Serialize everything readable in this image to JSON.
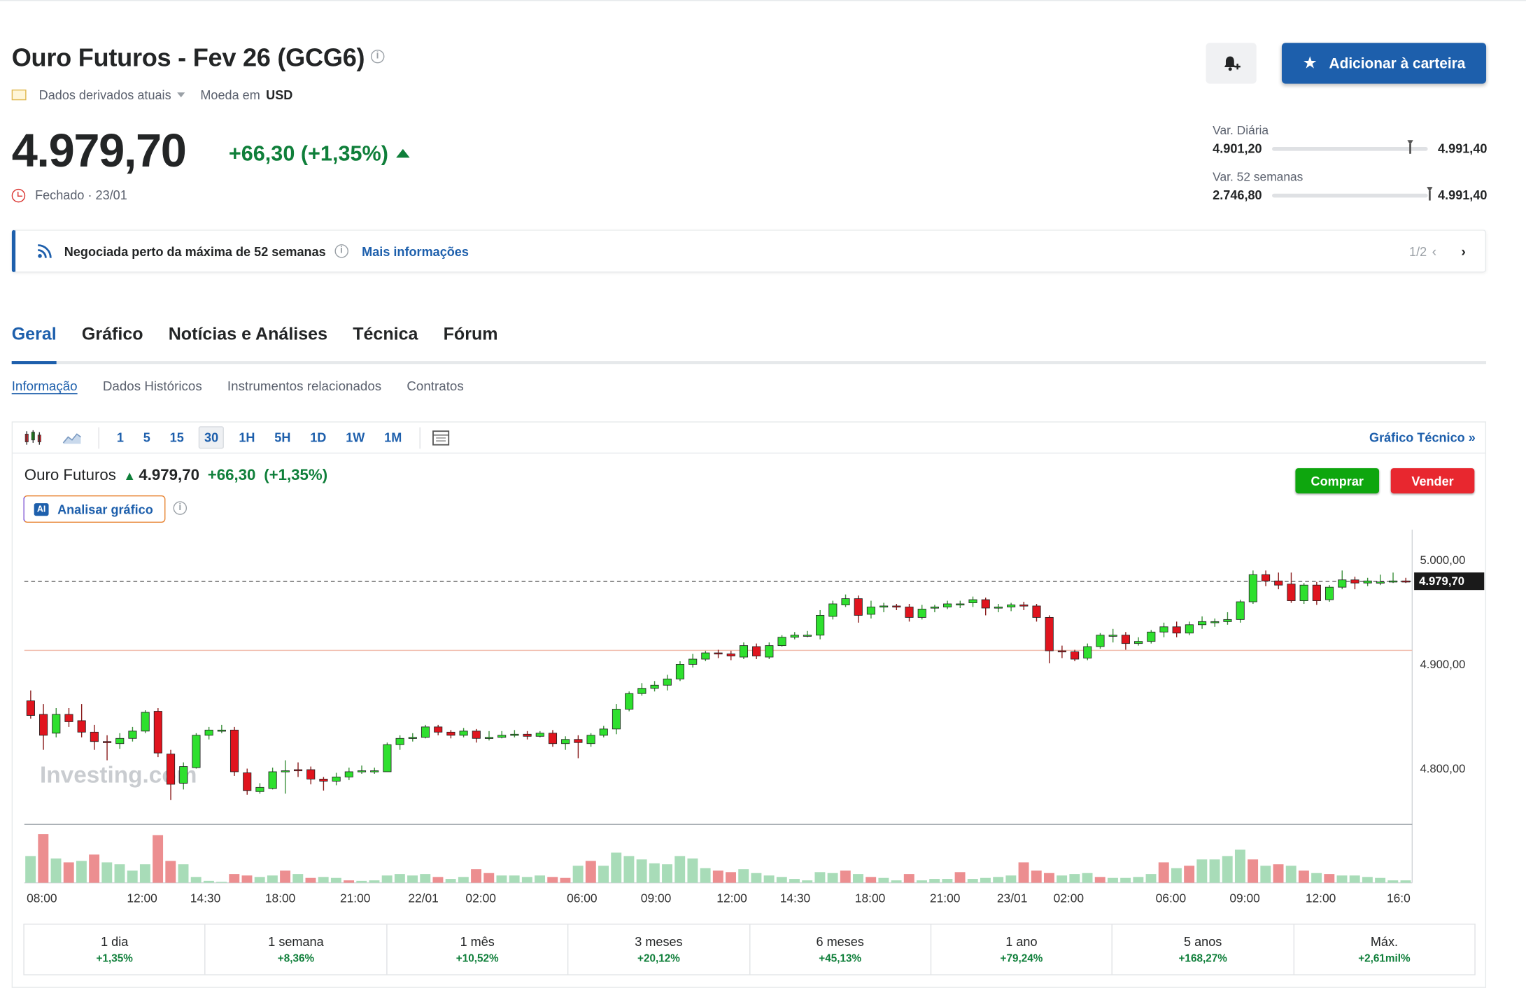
{
  "header": {
    "title": "Ouro Futuros - Fev 26 (GCG6)",
    "data_label": "Dados derivados atuais",
    "currency_label": "Moeda em",
    "currency": "USD",
    "add_portfolio_label": "Adicionar à carteira"
  },
  "quote": {
    "price": "4.979,70",
    "change": "+66,30",
    "change_pct": "(+1,35%)",
    "status": "Fechado · 23/01",
    "accent": "#1d5fac",
    "up_color": "#0f7f3a",
    "down_color": "#d9302c"
  },
  "ranges": {
    "daily_label": "Var. Diária",
    "daily_low": "4.901,20",
    "daily_high": "4.991,40",
    "daily_position": 0.87,
    "week52_label": "Var. 52 semanas",
    "week52_low": "2.746,80",
    "week52_high": "4.991,40",
    "week52_position": 0.99
  },
  "banner": {
    "text": "Negociada perto da máxima de 52 semanas",
    "link": "Mais informações",
    "pager": "1/2"
  },
  "tabs": [
    "Geral",
    "Gráfico",
    "Notícias e Análises",
    "Técnica",
    "Fórum"
  ],
  "subtabs": [
    "Informação",
    "Dados Históricos",
    "Instrumentos relacionados",
    "Contratos"
  ],
  "chart_toolbar": {
    "timeframes": [
      "1",
      "5",
      "15",
      "30",
      "1H",
      "5H",
      "1D",
      "1W",
      "1M"
    ],
    "selected": "30",
    "technical_link": "Gráfico Técnico »"
  },
  "chart_legend": {
    "name": "Ouro Futuros",
    "price": "4.979,70",
    "change": "+66,30",
    "change_pct": "(+1,35%)",
    "buy": "Comprar",
    "sell": "Vender",
    "ai_label": "Analisar gráfico",
    "ai_badge": "AI",
    "watermark": "Investing.com"
  },
  "chart_data": {
    "type": "candlestick",
    "ylabels": [
      "5.000,00",
      "4.900,00",
      "4.800,00"
    ],
    "last_price_label": "4.979,70",
    "last_price": 4979.7,
    "reference_line": 4913.4,
    "xlabels": [
      "08:00",
      "12:00",
      "14:30",
      "18:00",
      "21:00",
      "22/01",
      "02:00",
      "06:00",
      "09:00",
      "12:00",
      "14:30",
      "18:00",
      "21:00",
      "23/01",
      "02:00",
      "06:00",
      "09:00",
      "12:00",
      "16:0"
    ],
    "candles": [
      [
        4865,
        4851,
        4875,
        4848
      ],
      [
        4852,
        4832,
        4862,
        4818
      ],
      [
        4834,
        4852,
        4858,
        4830
      ],
      [
        4852,
        4845,
        4858,
        4840
      ],
      [
        4846,
        4835,
        4862,
        4830
      ],
      [
        4835,
        4826,
        4842,
        4818
      ],
      [
        4826,
        4825,
        4832,
        4808
      ],
      [
        4824,
        4829,
        4834,
        4819
      ],
      [
        4829,
        4836,
        4840,
        4826
      ],
      [
        4836,
        4854,
        4856,
        4834
      ],
      [
        4855,
        4815,
        4858,
        4811
      ],
      [
        4814,
        4785,
        4818,
        4770
      ],
      [
        4786,
        4802,
        4806,
        4780
      ],
      [
        4801,
        4832,
        4834,
        4800
      ],
      [
        4832,
        4837,
        4840,
        4828
      ],
      [
        4836,
        4837,
        4842,
        4834
      ],
      [
        4837,
        4797,
        4840,
        4793
      ],
      [
        4796,
        4779,
        4800,
        4775
      ],
      [
        4778,
        4782,
        4786,
        4776
      ],
      [
        4781,
        4797,
        4801,
        4780
      ],
      [
        4798,
        4798,
        4808,
        4776
      ],
      [
        4799,
        4798,
        4806,
        4792
      ],
      [
        4799,
        4790,
        4802,
        4785
      ],
      [
        4790,
        4788,
        4792,
        4779
      ],
      [
        4788,
        4792,
        4796,
        4784
      ],
      [
        4792,
        4797,
        4801,
        4789
      ],
      [
        4797,
        4798,
        4803,
        4795
      ],
      [
        4797,
        4798,
        4801,
        4795
      ],
      [
        4797,
        4823,
        4825,
        4797
      ],
      [
        4823,
        4829,
        4832,
        4818
      ],
      [
        4829,
        4830,
        4834,
        4826
      ],
      [
        4830,
        4840,
        4842,
        4829
      ],
      [
        4840,
        4835,
        4842,
        4832
      ],
      [
        4835,
        4832,
        4837,
        4829
      ],
      [
        4832,
        4836,
        4839,
        4830
      ],
      [
        4836,
        4829,
        4838,
        4825
      ],
      [
        4829,
        4830,
        4836,
        4827
      ],
      [
        4830,
        4832,
        4836,
        4829
      ],
      [
        4832,
        4833,
        4837,
        4830
      ],
      [
        4833,
        4831,
        4836,
        4828
      ],
      [
        4831,
        4834,
        4836,
        4830
      ],
      [
        4834,
        4824,
        4837,
        4821
      ],
      [
        4824,
        4828,
        4831,
        4818
      ],
      [
        4828,
        4825,
        4832,
        4810
      ],
      [
        4824,
        4832,
        4834,
        4821
      ],
      [
        4832,
        4838,
        4841,
        4830
      ],
      [
        4838,
        4857,
        4862,
        4833
      ],
      [
        4857,
        4872,
        4874,
        4855
      ],
      [
        4872,
        4877,
        4882,
        4870
      ],
      [
        4877,
        4880,
        4884,
        4874
      ],
      [
        4880,
        4886,
        4890,
        4875
      ],
      [
        4886,
        4900,
        4903,
        4884
      ],
      [
        4900,
        4905,
        4910,
        4897
      ],
      [
        4905,
        4911,
        4913,
        4903
      ],
      [
        4911,
        4910,
        4914,
        4906
      ],
      [
        4910,
        4908,
        4913,
        4904
      ],
      [
        4907,
        4918,
        4921,
        4905
      ],
      [
        4917,
        4908,
        4920,
        4905
      ],
      [
        4907,
        4918,
        4921,
        4905
      ],
      [
        4918,
        4926,
        4928,
        4917
      ],
      [
        4926,
        4928,
        4931,
        4924
      ],
      [
        4927,
        4928,
        4932,
        4926
      ],
      [
        4928,
        4947,
        4952,
        4924
      ],
      [
        4946,
        4958,
        4961,
        4943
      ],
      [
        4957,
        4963,
        4967,
        4955
      ],
      [
        4963,
        4947,
        4966,
        4940
      ],
      [
        4948,
        4955,
        4961,
        4944
      ],
      [
        4955,
        4956,
        4959,
        4950
      ],
      [
        4956,
        4955,
        4958,
        4952
      ],
      [
        4955,
        4945,
        4958,
        4941
      ],
      [
        4945,
        4953,
        4957,
        4943
      ],
      [
        4954,
        4955,
        4957,
        4950
      ],
      [
        4955,
        4958,
        4961,
        4953
      ],
      [
        4958,
        4958,
        4961,
        4954
      ],
      [
        4959,
        4962,
        4965,
        4955
      ],
      [
        4962,
        4954,
        4964,
        4947
      ],
      [
        4954,
        4955,
        4958,
        4950
      ],
      [
        4955,
        4957,
        4959,
        4951
      ],
      [
        4957,
        4956,
        4960,
        4952
      ],
      [
        4956,
        4945,
        4958,
        4941
      ],
      [
        4945,
        4913,
        4947,
        4901
      ],
      [
        4913,
        4912,
        4918,
        4906
      ],
      [
        4912,
        4905,
        4914,
        4903
      ],
      [
        4906,
        4917,
        4920,
        4904
      ],
      [
        4917,
        4928,
        4930,
        4915
      ],
      [
        4928,
        4928,
        4934,
        4921
      ],
      [
        4928,
        4920,
        4931,
        4914
      ],
      [
        4920,
        4922,
        4926,
        4918
      ],
      [
        4922,
        4931,
        4933,
        4920
      ],
      [
        4931,
        4936,
        4940,
        4926
      ],
      [
        4936,
        4930,
        4941,
        4926
      ],
      [
        4930,
        4938,
        4941,
        4928
      ],
      [
        4938,
        4941,
        4946,
        4934
      ],
      [
        4941,
        4941,
        4944,
        4936
      ],
      [
        4941,
        4943,
        4950,
        4938
      ],
      [
        4943,
        4960,
        4962,
        4940
      ],
      [
        4960,
        4986,
        4990,
        4958
      ],
      [
        4986,
        4980,
        4990,
        4975
      ],
      [
        4980,
        4976,
        4988,
        4972
      ],
      [
        4977,
        4961,
        4988,
        4959
      ],
      [
        4961,
        4976,
        4978,
        4958
      ],
      [
        4976,
        4961,
        4979,
        4957
      ],
      [
        4962,
        4974,
        4976,
        4960
      ],
      [
        4974,
        4981,
        4990,
        4972
      ],
      [
        4981,
        4978,
        4984,
        4972
      ],
      [
        4978,
        4980,
        4983,
        4975
      ],
      [
        4979,
        4979,
        4986,
        4976
      ],
      [
        4980,
        4980,
        4988,
        4978
      ],
      [
        4980,
        4979.7,
        4983,
        4978
      ]
    ],
    "volumes": [
      [
        0.55,
        "up"
      ],
      [
        1.0,
        "down"
      ],
      [
        0.5,
        "up"
      ],
      [
        0.42,
        "down"
      ],
      [
        0.45,
        "up"
      ],
      [
        0.58,
        "down"
      ],
      [
        0.42,
        "up"
      ],
      [
        0.38,
        "up"
      ],
      [
        0.25,
        "up"
      ],
      [
        0.38,
        "up"
      ],
      [
        0.98,
        "down"
      ],
      [
        0.45,
        "down"
      ],
      [
        0.38,
        "up"
      ],
      [
        0.12,
        "up"
      ],
      [
        0.04,
        "up"
      ],
      [
        0.02,
        "up"
      ],
      [
        0.18,
        "down"
      ],
      [
        0.15,
        "down"
      ],
      [
        0.12,
        "up"
      ],
      [
        0.15,
        "up"
      ],
      [
        0.25,
        "down"
      ],
      [
        0.18,
        "up"
      ],
      [
        0.1,
        "down"
      ],
      [
        0.12,
        "up"
      ],
      [
        0.1,
        "up"
      ],
      [
        0.05,
        "down"
      ],
      [
        0.04,
        "up"
      ],
      [
        0.05,
        "up"
      ],
      [
        0.15,
        "up"
      ],
      [
        0.18,
        "up"
      ],
      [
        0.15,
        "up"
      ],
      [
        0.18,
        "up"
      ],
      [
        0.12,
        "down"
      ],
      [
        0.08,
        "up"
      ],
      [
        0.12,
        "up"
      ],
      [
        0.28,
        "down"
      ],
      [
        0.2,
        "down"
      ],
      [
        0.15,
        "up"
      ],
      [
        0.15,
        "up"
      ],
      [
        0.12,
        "up"
      ],
      [
        0.15,
        "up"
      ],
      [
        0.12,
        "down"
      ],
      [
        0.1,
        "down"
      ],
      [
        0.35,
        "up"
      ],
      [
        0.45,
        "down"
      ],
      [
        0.35,
        "up"
      ],
      [
        0.62,
        "up"
      ],
      [
        0.55,
        "up"
      ],
      [
        0.48,
        "up"
      ],
      [
        0.4,
        "up"
      ],
      [
        0.38,
        "up"
      ],
      [
        0.55,
        "up"
      ],
      [
        0.5,
        "up"
      ],
      [
        0.3,
        "up"
      ],
      [
        0.25,
        "down"
      ],
      [
        0.22,
        "down"
      ],
      [
        0.28,
        "up"
      ],
      [
        0.2,
        "up"
      ],
      [
        0.15,
        "up"
      ],
      [
        0.12,
        "up"
      ],
      [
        0.08,
        "up"
      ],
      [
        0.05,
        "up"
      ],
      [
        0.22,
        "up"
      ],
      [
        0.2,
        "up"
      ],
      [
        0.25,
        "down"
      ],
      [
        0.18,
        "up"
      ],
      [
        0.12,
        "down"
      ],
      [
        0.1,
        "up"
      ],
      [
        0.05,
        "up"
      ],
      [
        0.18,
        "down"
      ],
      [
        0.05,
        "up"
      ],
      [
        0.08,
        "up"
      ],
      [
        0.08,
        "up"
      ],
      [
        0.22,
        "down"
      ],
      [
        0.08,
        "up"
      ],
      [
        0.1,
        "up"
      ],
      [
        0.12,
        "up"
      ],
      [
        0.15,
        "up"
      ],
      [
        0.42,
        "down"
      ],
      [
        0.25,
        "down"
      ],
      [
        0.2,
        "down"
      ],
      [
        0.15,
        "up"
      ],
      [
        0.18,
        "up"
      ],
      [
        0.2,
        "up"
      ],
      [
        0.12,
        "down"
      ],
      [
        0.1,
        "up"
      ],
      [
        0.1,
        "up"
      ],
      [
        0.12,
        "up"
      ],
      [
        0.18,
        "up"
      ],
      [
        0.42,
        "down"
      ],
      [
        0.3,
        "up"
      ],
      [
        0.35,
        "down"
      ],
      [
        0.48,
        "up"
      ],
      [
        0.48,
        "up"
      ],
      [
        0.55,
        "up"
      ],
      [
        0.68,
        "up"
      ],
      [
        0.48,
        "down"
      ],
      [
        0.35,
        "up"
      ],
      [
        0.38,
        "down"
      ],
      [
        0.35,
        "up"
      ],
      [
        0.25,
        "down"
      ],
      [
        0.2,
        "up"
      ],
      [
        0.18,
        "down"
      ],
      [
        0.15,
        "up"
      ],
      [
        0.15,
        "up"
      ],
      [
        0.12,
        "up"
      ],
      [
        0.1,
        "up"
      ],
      [
        0.05,
        "up"
      ],
      [
        0.05,
        "up"
      ]
    ]
  },
  "performance": [
    {
      "label": "1 dia",
      "value": "+1,35%"
    },
    {
      "label": "1 semana",
      "value": "+8,36%"
    },
    {
      "label": "1 mês",
      "value": "+10,52%"
    },
    {
      "label": "3 meses",
      "value": "+20,12%"
    },
    {
      "label": "6 meses",
      "value": "+45,13%"
    },
    {
      "label": "1 ano",
      "value": "+79,24%"
    },
    {
      "label": "5 anos",
      "value": "+168,27%"
    },
    {
      "label": "Máx.",
      "value": "+2,61mil%"
    }
  ]
}
